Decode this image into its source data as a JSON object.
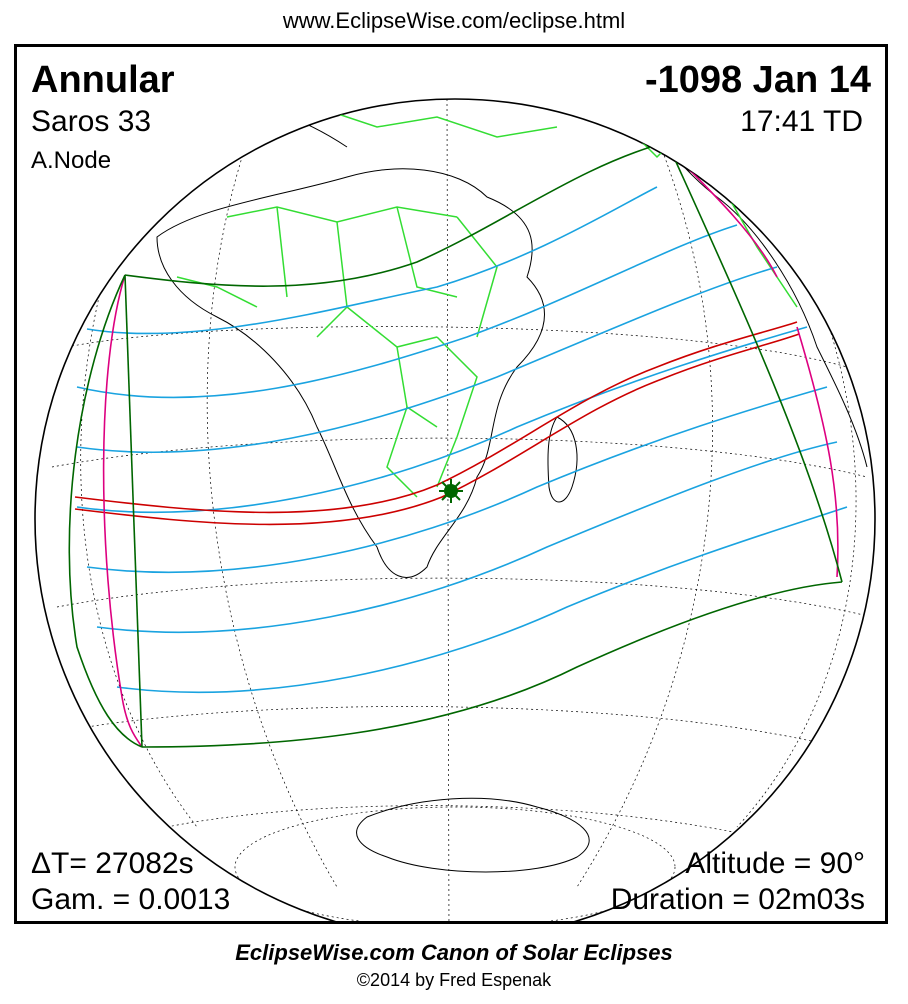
{
  "header": {
    "url": "www.EclipseWise.com/eclipse.html"
  },
  "eclipse": {
    "type": "Annular",
    "date": "-1098 Jan 14",
    "saros": "Saros  33",
    "time": "17:41 TD",
    "node": "A.Node",
    "delta_t": "ΔT=  27082s",
    "gamma": "Gam. = 0.0013",
    "altitude": "Altitude = 90°",
    "duration": "Duration = 02m03s"
  },
  "footer": {
    "canon": "EclipseWise.com Canon of Solar Eclipses",
    "copyright": "©2014 by Fred Espenak"
  },
  "colors": {
    "central_path": "#cc0000",
    "penumbral_limits": "#1aa3e0",
    "outer_limits": "#006600",
    "rise_set_curves": "#dd0080",
    "borders": "#33dd33",
    "greatest_eclipse": "#006600"
  }
}
